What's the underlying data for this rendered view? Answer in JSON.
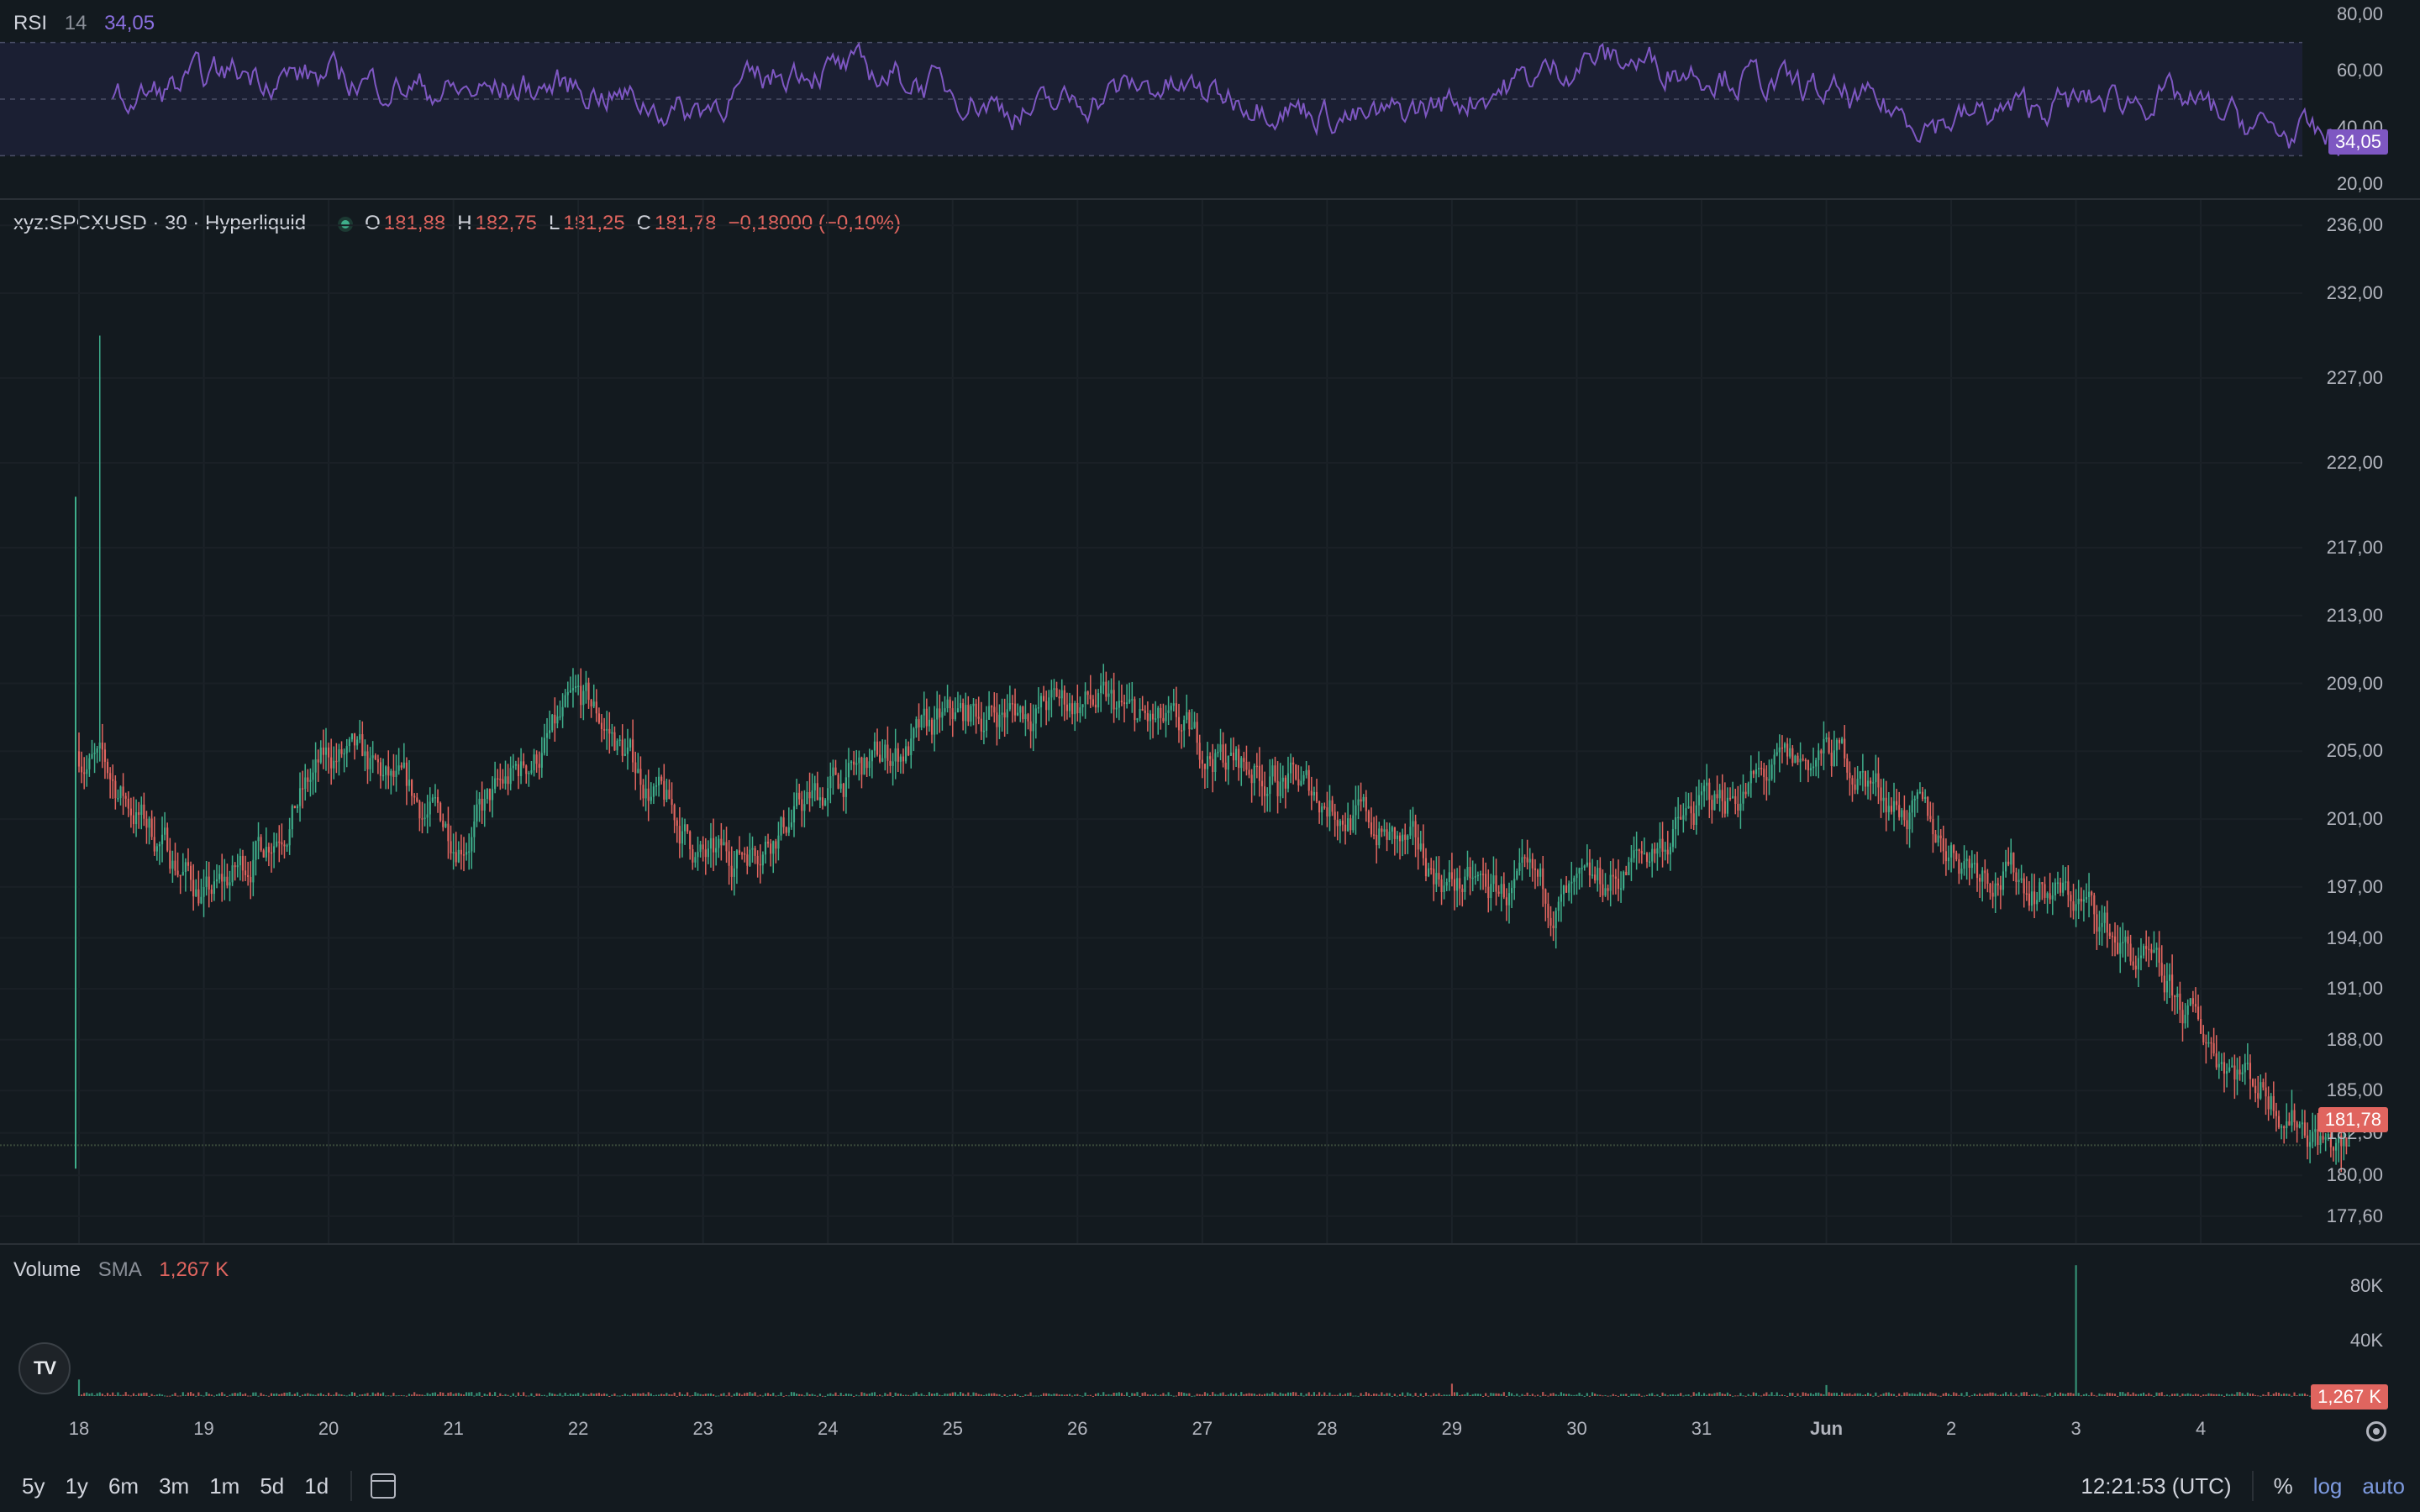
{
  "rsi": {
    "name": "RSI",
    "length": "14",
    "value": "34,05",
    "axis_labels": [
      "80,00",
      "60,00",
      "40,00",
      "20,00"
    ],
    "axis_values": [
      80,
      60,
      40,
      20
    ],
    "band_upper": 70,
    "band_lower": 30,
    "mid": 50,
    "current_tag": "34,05",
    "color": "#7e57c2"
  },
  "main": {
    "symbol": "xyz:SPCXUSD · 30 · Hyperliquid",
    "open_label": "O",
    "open": "181,88",
    "high_label": "H",
    "high": "182,75",
    "low_label": "L",
    "low": "181,25",
    "close_label": "C",
    "close": "181,78",
    "change": "−0,18000 (−0,10%)",
    "axis_labels": [
      "236,00",
      "232,00",
      "227,00",
      "222,00",
      "217,00",
      "213,00",
      "209,00",
      "205,00",
      "201,00",
      "197,00",
      "194,00",
      "191,00",
      "188,00",
      "185,00",
      "182,50",
      "180,00",
      "177,60"
    ],
    "last_price_tag": "181,78",
    "up_color": "#3fae8b",
    "down_color": "#e0655f"
  },
  "volume": {
    "name": "Volume",
    "sma_label": "SMA",
    "sma_value": "1,267 K",
    "axis_labels": [
      "80K",
      "40K"
    ],
    "current_tag": "1,267 K"
  },
  "time_axis": {
    "labels": [
      "18",
      "19",
      "20",
      "21",
      "22",
      "23",
      "24",
      "25",
      "26",
      "27",
      "28",
      "29",
      "30",
      "31",
      "Jun",
      "2",
      "3",
      "4"
    ]
  },
  "bottom_bar": {
    "ranges": [
      "5y",
      "1y",
      "6m",
      "3m",
      "1m",
      "5d",
      "1d"
    ],
    "clock": "12:21:53 (UTC)",
    "percent": "%",
    "log": "log",
    "auto": "auto"
  },
  "chart_data": {
    "type": "candlestick",
    "symbol": "xyz:SPCXUSD",
    "interval": "30",
    "x": [
      "18",
      "19",
      "20",
      "21",
      "22",
      "23",
      "24",
      "25",
      "26",
      "27",
      "28",
      "29",
      "30",
      "31",
      "Jun",
      "2",
      "3",
      "4"
    ],
    "close_approx": [
      205,
      196,
      205,
      200,
      208,
      198,
      203,
      207,
      208,
      205,
      202,
      197,
      196,
      202,
      205,
      199,
      196,
      188
    ],
    "last_close": 181.78,
    "high_spike": 229.5,
    "low_extreme": 180.2,
    "ylim": [
      176.5,
      237
    ],
    "rsi_values": [
      48,
      60,
      57,
      52,
      55,
      45,
      62,
      57,
      45,
      55,
      50,
      42,
      52,
      65,
      60,
      52,
      42,
      48,
      51,
      38,
      34
    ],
    "rsi_ylim": [
      15,
      85
    ],
    "volume_spikes_k": [
      {
        "x": "18",
        "v": 12
      },
      {
        "x": "29",
        "v": 9
      },
      {
        "x": "Jun",
        "v": 8
      },
      {
        "x": "3",
        "v": 95
      }
    ],
    "volume_ylim": [
      0,
      100
    ]
  }
}
